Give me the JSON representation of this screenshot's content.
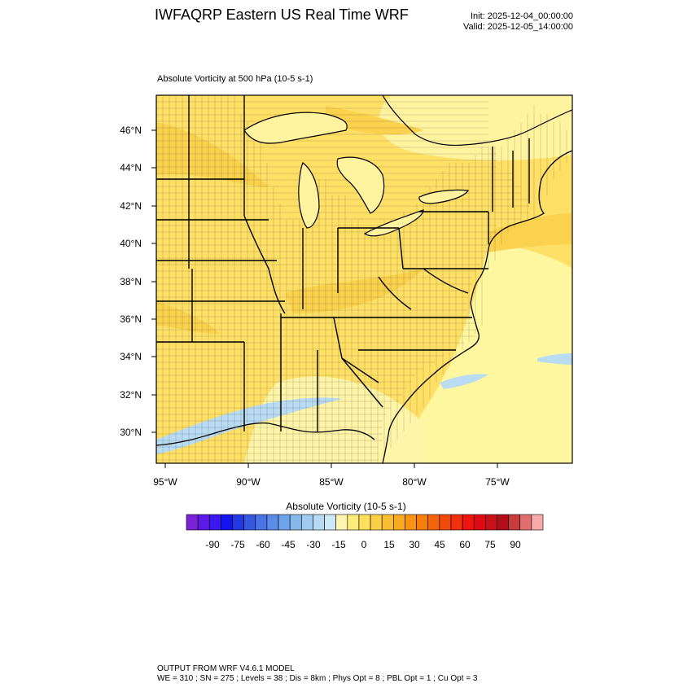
{
  "header": {
    "title": "IWFAQRP Eastern US Real Time WRF",
    "init": "Init: 2025-12-04_00:00:00",
    "valid": "Valid: 2025-12-05_14:00:00"
  },
  "map": {
    "field_title": "Absolute Vorticity at 500 hPa   (10-5 s-1)",
    "lat_labels": [
      "46°N",
      "44°N",
      "42°N",
      "40°N",
      "38°N",
      "36°N",
      "34°N",
      "32°N",
      "30°N"
    ],
    "lon_labels": [
      "95°W",
      "90°W",
      "85°W",
      "80°W",
      "75°W"
    ],
    "colors": {
      "land_fill": "#ffe066",
      "light_fill": "#fff6a0",
      "warm_fill": "#fbd24e",
      "negative_fill": "#b9dcf2",
      "boundary": "#000000"
    }
  },
  "colorbar": {
    "title": "Absolute Vorticity  (10-5 s-1)",
    "tick_labels": [
      "-90",
      "-75",
      "-60",
      "-45",
      "-30",
      "-15",
      "0",
      "15",
      "30",
      "45",
      "60",
      "75",
      "90"
    ],
    "colors": [
      "#7a22d6",
      "#5a1be8",
      "#3a18f0",
      "#1414f2",
      "#2438e0",
      "#3658e0",
      "#4a74e6",
      "#5a8ce8",
      "#6ea4ea",
      "#86b8ec",
      "#a0caef",
      "#b7d9f3",
      "#cfe8f7",
      "#fff5b0",
      "#fdeb7a",
      "#fde05c",
      "#fbd044",
      "#f9be32",
      "#f8aa20",
      "#f89412",
      "#f67e0a",
      "#f4640a",
      "#f24a0c",
      "#f0300e",
      "#ee1410",
      "#e00a14",
      "#c81018",
      "#b40c18",
      "#c83c3c",
      "#e07070",
      "#f7aaaa"
    ]
  },
  "footer": {
    "line1": "OUTPUT FROM WRF V4.6.1 MODEL",
    "line2": "WE = 310 ; SN = 275 ; Levels = 38 ; Dis = 8km ; Phys Opt = 8 ; PBL Opt = 1 ; Cu Opt = 3"
  }
}
